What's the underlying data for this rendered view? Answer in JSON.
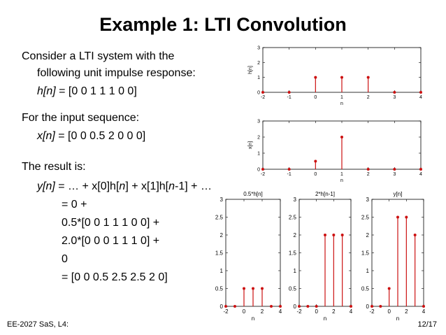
{
  "slide": {
    "title": "Example 1: LTI Convolution",
    "footer_left": "EE-2027 SaS, L4:",
    "footer_right": "12/17"
  },
  "body": {
    "line1": "Consider a LTI system with the",
    "line2": "following unit impulse response:",
    "h_lhs": "h[n]",
    "h_rhs": " = [0 0 1 1 1 0 0]",
    "line4": "For the input sequence:",
    "x_lhs": "x[n]",
    "x_rhs": " = [0 0 0.5 2 0 0 0]",
    "line6": "The result is:",
    "y_a": "y[n]",
    "y_b": " = … + x[0]h[",
    "y_c": "n",
    "y_d": "] + x[1]h[",
    "y_e": "n",
    "y_f": "-1] + …",
    "r1": "= 0 +",
    "r2": "0.5*[0 0 1 1 1 0 0] +",
    "r3": "2.0*[0 0 0 1 1 1 0] +",
    "r4": "0",
    "r5": "= [0 0 0.5 2.5 2.5 2 0]"
  },
  "colors": {
    "stem": "#cc1111",
    "axes": "#000000"
  },
  "chart_data": [
    {
      "type": "stem",
      "title": "",
      "xlabel": "n",
      "ylabel": "h[n]",
      "x": [
        -2,
        -1,
        0,
        1,
        2,
        3,
        4
      ],
      "y": [
        0,
        0,
        1,
        1,
        1,
        0,
        0
      ],
      "xlim": [
        -2,
        4
      ],
      "ylim": [
        0,
        3
      ],
      "xticks": [
        "-2",
        "-1",
        "0",
        "1",
        "2",
        "3",
        "4"
      ],
      "yticks": [
        "0",
        "1",
        "2",
        "3"
      ]
    },
    {
      "type": "stem",
      "title": "",
      "xlabel": "n",
      "ylabel": "x[n]",
      "x": [
        -2,
        -1,
        0,
        1,
        2,
        3,
        4
      ],
      "y": [
        0,
        0,
        0.5,
        2,
        0,
        0,
        0
      ],
      "xlim": [
        -2,
        4
      ],
      "ylim": [
        0,
        3
      ],
      "xticks": [
        "-2",
        "-1",
        "0",
        "1",
        "2",
        "3",
        "4"
      ],
      "yticks": [
        "0",
        "1",
        "2",
        "3"
      ]
    },
    {
      "type": "stem",
      "title": "0.5*h[n]",
      "xlabel": "n",
      "ylabel": "",
      "x": [
        -2,
        -1,
        0,
        1,
        2,
        3,
        4
      ],
      "y": [
        0,
        0,
        0.5,
        0.5,
        0.5,
        0,
        0
      ],
      "xlim": [
        -2,
        4
      ],
      "ylim": [
        0,
        3
      ],
      "xticks": [
        "-2",
        "0",
        "2",
        "4"
      ],
      "yticks": [
        "0",
        "0.5",
        "1",
        "1.5",
        "2",
        "2.5",
        "3"
      ]
    },
    {
      "type": "stem",
      "title": "2*h[n-1]",
      "xlabel": "n",
      "ylabel": "",
      "x": [
        -2,
        -1,
        0,
        1,
        2,
        3,
        4
      ],
      "y": [
        0,
        0,
        0,
        2,
        2,
        2,
        0
      ],
      "xlim": [
        -2,
        4
      ],
      "ylim": [
        0,
        3
      ],
      "xticks": [
        "-2",
        "0",
        "2",
        "4"
      ],
      "yticks": [
        "0",
        "0.5",
        "1",
        "1.5",
        "2",
        "2.5",
        "3"
      ]
    },
    {
      "type": "stem",
      "title": "y[n]",
      "xlabel": "n",
      "ylabel": "",
      "x": [
        -2,
        -1,
        0,
        1,
        2,
        3,
        4
      ],
      "y": [
        0,
        0,
        0.5,
        2.5,
        2.5,
        2,
        0
      ],
      "xlim": [
        -2,
        4
      ],
      "ylim": [
        0,
        3
      ],
      "xticks": [
        "-2",
        "0",
        "2",
        "4"
      ],
      "yticks": [
        "0",
        "0.5",
        "1",
        "1.5",
        "2",
        "2.5",
        "3"
      ]
    }
  ]
}
